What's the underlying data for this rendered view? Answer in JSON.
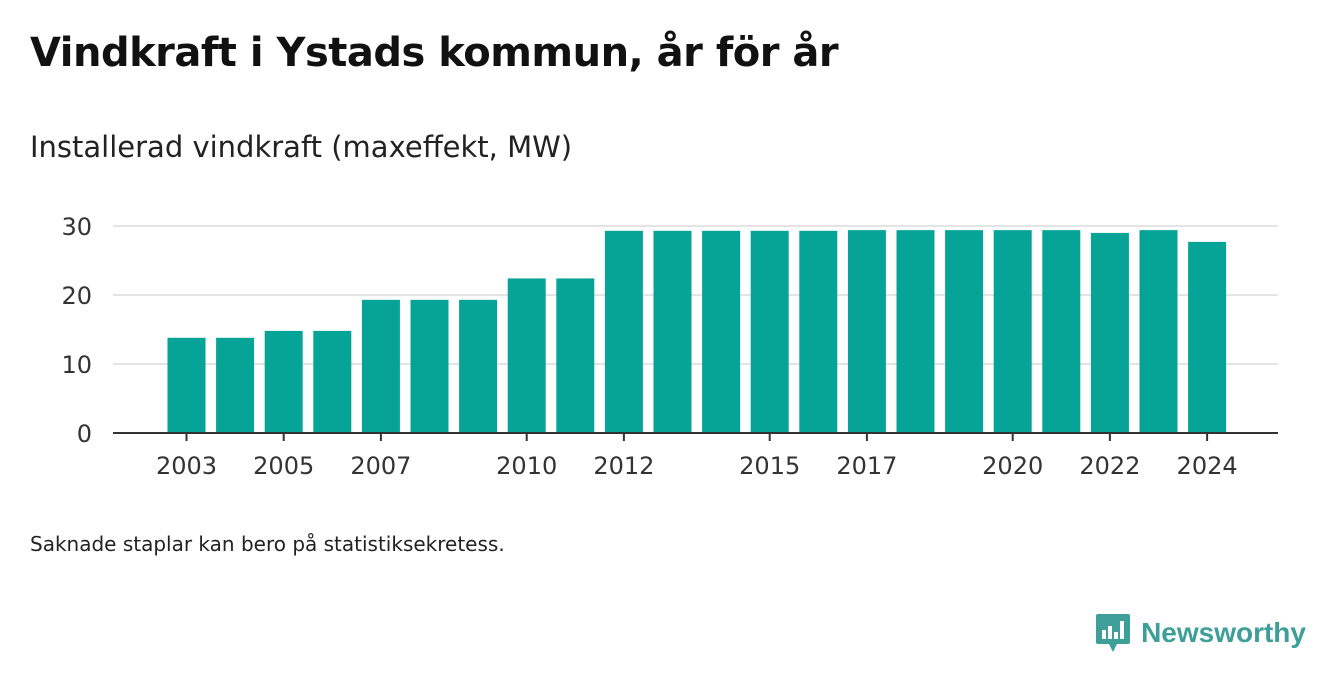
{
  "header": {
    "title": "Vindkraft i Ystads kommun, år för år",
    "subtitle": "Installerad vindkraft (maxeffekt, MW)"
  },
  "footer": {
    "note": "Saknade staplar kan bero på statistiksekretess.",
    "brand": "Newsworthy"
  },
  "colors": {
    "bar": "#06a497",
    "grid": "#dcdcdc",
    "axis": "#333333",
    "brand": "#3d9f97"
  },
  "chart_data": {
    "type": "bar",
    "categories": [
      "2003",
      "2004",
      "2005",
      "2006",
      "2007",
      "2008",
      "2009",
      "2010",
      "2011",
      "2012",
      "2013",
      "2014",
      "2015",
      "2016",
      "2017",
      "2018",
      "2019",
      "2020",
      "2021",
      "2022",
      "2023",
      "2024"
    ],
    "values": [
      13.8,
      13.8,
      14.8,
      14.8,
      19.3,
      19.3,
      19.3,
      22.4,
      22.4,
      29.3,
      29.3,
      29.3,
      29.3,
      29.3,
      29.4,
      29.4,
      29.4,
      29.4,
      29.4,
      29.0,
      29.4,
      27.7
    ],
    "x_tick_labels": [
      "2003",
      "2005",
      "2007",
      "2010",
      "2012",
      "2015",
      "2017",
      "2020",
      "2022",
      "2024"
    ],
    "y_ticks": [
      "0",
      "10",
      "20",
      "30"
    ],
    "ylim": [
      0,
      30
    ],
    "grid": true,
    "legend": "none"
  }
}
